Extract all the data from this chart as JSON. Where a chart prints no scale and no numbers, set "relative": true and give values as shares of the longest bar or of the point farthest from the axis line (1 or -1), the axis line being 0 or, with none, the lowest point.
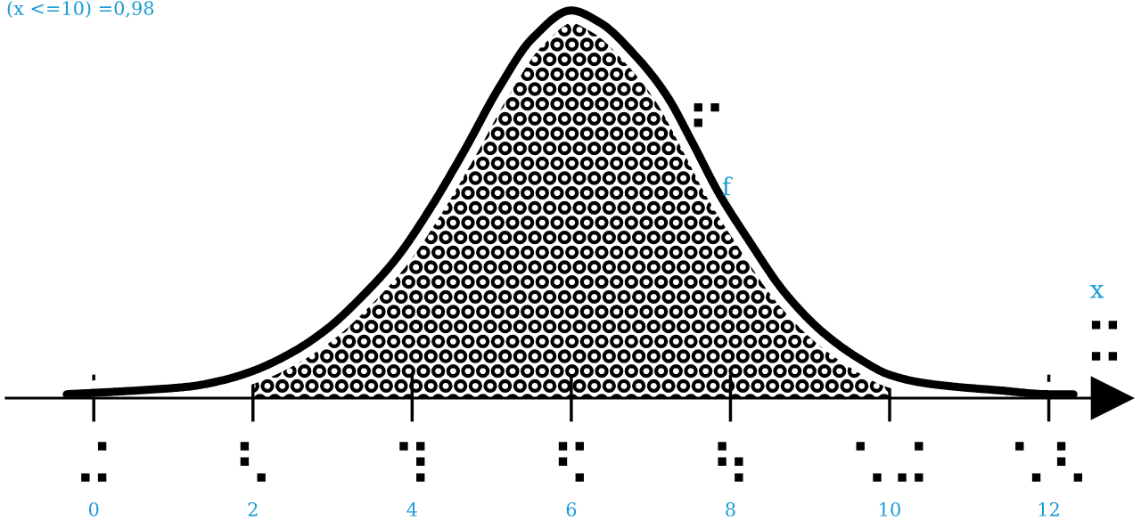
{
  "chart_data": {
    "type": "line",
    "title": "(x <=10) =0,98",
    "xlabel": "x\n⠭",
    "relative": true,
    "xlim": [
      -1.1,
      12.8
    ],
    "xticks": [
      0,
      2,
      4,
      6,
      8,
      10,
      12
    ],
    "series": [
      {
        "type": "area",
        "color": "#000000",
        "x": [
          2.0,
          2.51,
          2.94,
          3.36,
          3.8,
          4.23,
          4.66,
          5.09,
          5.52,
          6.0,
          6.35,
          6.82,
          7.2,
          7.52,
          7.85,
          8.22,
          8.69,
          9.16,
          9.63,
          10.0
        ],
        "values": [
          0.07,
          0.12,
          0.18,
          0.26,
          0.36,
          0.49,
          0.64,
          0.8,
          0.93,
          1.0,
          0.97,
          0.88,
          0.78,
          0.66,
          0.53,
          0.41,
          0.27,
          0.17,
          0.1,
          0.06
        ]
      },
      {
        "name": "⠋\nf",
        "color": "#000000",
        "x": [
          -0.34,
          0.57,
          1.21,
          1.6,
          2.0,
          2.51,
          2.94,
          3.36,
          3.8,
          4.23,
          4.66,
          5.09,
          5.52,
          6.0,
          6.35,
          6.82,
          7.2,
          7.52,
          7.85,
          8.22,
          8.69,
          9.16,
          9.63,
          10.0,
          10.4,
          10.79,
          11.38,
          12.0,
          12.31
        ],
        "values": [
          0.01,
          0.02,
          0.03,
          0.045,
          0.07,
          0.12,
          0.18,
          0.26,
          0.36,
          0.49,
          0.64,
          0.8,
          0.93,
          1.0,
          0.97,
          0.88,
          0.78,
          0.66,
          0.53,
          0.41,
          0.27,
          0.17,
          0.1,
          0.06,
          0.04,
          0.03,
          0.02,
          0.01,
          0.01
        ]
      }
    ],
    "annotations": [
      "⠬",
      "⠣",
      "⠹",
      "⠫",
      "⠳",
      "⠡⠬",
      "⠡⠣"
    ]
  }
}
